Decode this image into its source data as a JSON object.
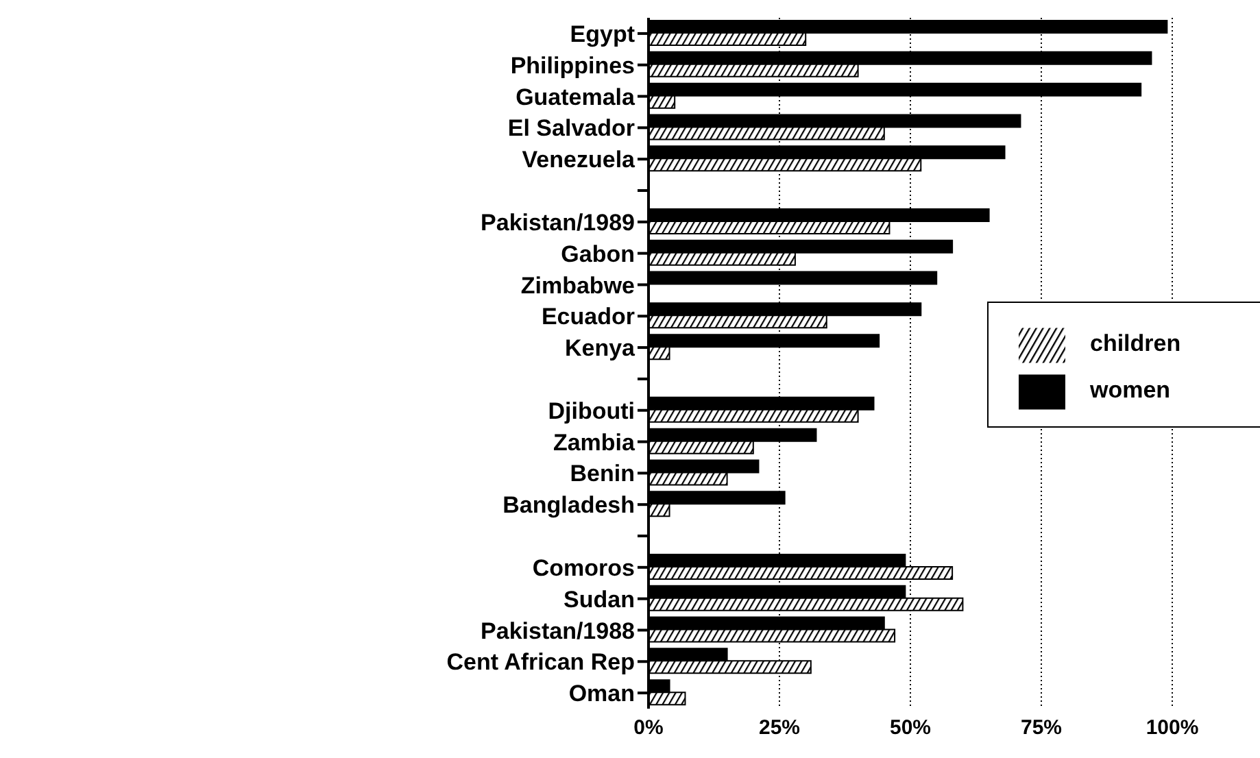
{
  "chart_data": {
    "type": "bar",
    "orientation": "horizontal",
    "categories": [
      "Egypt",
      "Philippines",
      "Guatemala",
      "El Salvador",
      "Venezuela",
      null,
      "Pakistan/1989",
      "Gabon",
      "Zimbabwe",
      "Ecuador",
      "Kenya",
      null,
      "Djibouti",
      "Zambia",
      "Benin",
      "Bangladesh",
      null,
      "Comoros",
      "Sudan",
      "Pakistan/1988",
      "Cent African Rep",
      "Oman"
    ],
    "series": [
      {
        "name": "women",
        "color": "#000000",
        "values": [
          99,
          96,
          94,
          71,
          68,
          null,
          65,
          58,
          55,
          52,
          44,
          null,
          43,
          32,
          21,
          26,
          null,
          49,
          49,
          45,
          15,
          4
        ]
      },
      {
        "name": "children",
        "color": "#000000",
        "values": [
          30,
          40,
          5,
          45,
          52,
          null,
          46,
          28,
          null,
          34,
          4,
          null,
          40,
          20,
          15,
          4,
          null,
          58,
          60,
          47,
          31,
          7
        ]
      }
    ],
    "xlim": [
      0,
      100
    ],
    "xticks": [
      {
        "value": 0,
        "label": "0%"
      },
      {
        "value": 25,
        "label": "25%"
      },
      {
        "value": 50,
        "label": "50%"
      },
      {
        "value": 75,
        "label": "75%"
      },
      {
        "value": 100,
        "label": "100%"
      }
    ],
    "grid": "x",
    "legend": "right"
  }
}
